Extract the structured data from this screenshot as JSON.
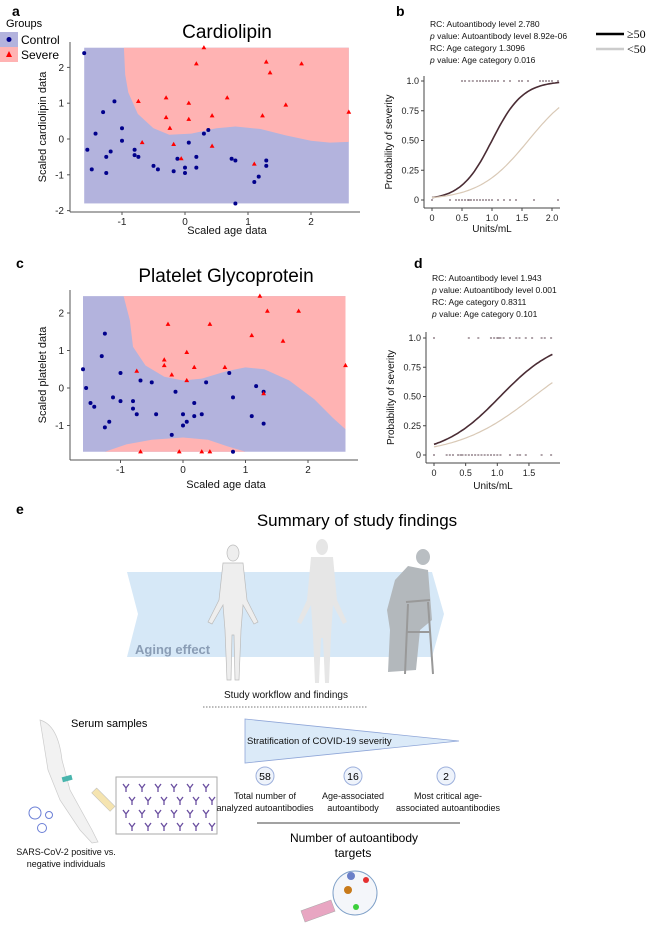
{
  "figure_labels": {
    "a": "a",
    "b": "b",
    "c": "c",
    "d": "d",
    "e": "e"
  },
  "colors": {
    "control": "#00008b",
    "severe": "#ff0000",
    "control_region": "#b3b3dd",
    "severe_region": "#ffb3b3",
    "age_ge50": "#4a2c34",
    "age_lt50": "#d9c9b6"
  },
  "legend_groups": {
    "title": "Groups",
    "control": "Control",
    "severe": "Severe"
  },
  "legend_age": {
    "ge50": "≥50",
    "lt50": "<50"
  },
  "chart_data": [
    {
      "id": "a",
      "type": "scatter",
      "title": "Cardiolipin",
      "xlabel": "Scaled age data",
      "ylabel": "Scaled cardiolipin data",
      "xticks": [
        "-1",
        "0",
        "1",
        "2"
      ],
      "xtick_values": [
        -1,
        0,
        1,
        2
      ],
      "yticks": [
        "-2",
        "-1",
        "0",
        "1",
        "2"
      ],
      "ytick_values": [
        -2,
        -1,
        0,
        1,
        2
      ],
      "region_extent": {
        "x": [
          -1.6,
          2.6
        ],
        "y": [
          -1.8,
          2.55
        ]
      },
      "severe_region_boundary": [
        [
          -0.97,
          2.55
        ],
        [
          -0.95,
          1.8
        ],
        [
          -0.9,
          1.3
        ],
        [
          -0.75,
          0.7
        ],
        [
          -0.5,
          0.3
        ],
        [
          -0.25,
          0.12
        ],
        [
          0.1,
          0.15
        ],
        [
          0.5,
          0.3
        ],
        [
          0.8,
          0.35
        ],
        [
          1.2,
          0.28
        ],
        [
          1.6,
          0.1
        ],
        [
          2.0,
          -0.05
        ],
        [
          2.3,
          -0.1
        ],
        [
          2.6,
          -0.08
        ],
        [
          2.6,
          2.55
        ]
      ],
      "extra_severe_regions": [],
      "series": [
        {
          "name": "Control",
          "points": [
            [
              -1.6,
              2.4
            ],
            [
              -1.55,
              -0.3
            ],
            [
              -1.48,
              -0.85
            ],
            [
              -1.42,
              0.15
            ],
            [
              -1.3,
              0.75
            ],
            [
              -1.25,
              -0.5
            ],
            [
              -1.25,
              -0.95
            ],
            [
              -1.18,
              -0.35
            ],
            [
              -1.12,
              1.05
            ],
            [
              -1.0,
              0.3
            ],
            [
              -1.0,
              -0.05
            ],
            [
              -0.8,
              -0.3
            ],
            [
              -0.8,
              -0.45
            ],
            [
              -0.74,
              -0.5
            ],
            [
              -0.5,
              -0.75
            ],
            [
              -0.43,
              -0.85
            ],
            [
              -0.18,
              -0.9
            ],
            [
              -0.12,
              -0.55
            ],
            [
              0,
              -0.8
            ],
            [
              0,
              -0.95
            ],
            [
              0.06,
              -0.1
            ],
            [
              0.18,
              -0.5
            ],
            [
              0.18,
              -0.8
            ],
            [
              0.3,
              0.15
            ],
            [
              0.37,
              0.25
            ],
            [
              0.74,
              -0.55
            ],
            [
              0.8,
              -0.6
            ],
            [
              0.8,
              -1.8
            ],
            [
              1.1,
              -1.2
            ],
            [
              1.17,
              -1.05
            ],
            [
              1.29,
              -0.6
            ],
            [
              1.29,
              -0.75
            ]
          ]
        },
        {
          "name": "Severe",
          "points": [
            [
              0.3,
              2.55
            ],
            [
              0.18,
              2.1
            ],
            [
              1.29,
              2.15
            ],
            [
              1.35,
              1.85
            ],
            [
              1.85,
              2.1
            ],
            [
              -0.74,
              1.05
            ],
            [
              -0.3,
              1.15
            ],
            [
              0.06,
              1.0
            ],
            [
              0.67,
              1.15
            ],
            [
              -0.3,
              0.6
            ],
            [
              0.06,
              0.55
            ],
            [
              0.43,
              0.65
            ],
            [
              1.23,
              0.65
            ],
            [
              1.6,
              0.95
            ],
            [
              2.6,
              0.75
            ],
            [
              -0.24,
              0.3
            ],
            [
              -0.68,
              -0.1
            ],
            [
              -0.18,
              -0.15
            ],
            [
              0.43,
              -0.2
            ],
            [
              -0.06,
              -0.55
            ],
            [
              1.1,
              -0.7
            ]
          ]
        }
      ]
    },
    {
      "id": "b",
      "type": "line",
      "xlabel": "Units/mL",
      "ylabel": "Probability of severity",
      "xticks": [
        "0",
        "0.5",
        "1.0",
        "1.5",
        "2.0"
      ],
      "xtick_values": [
        0,
        0.5,
        1.0,
        1.5,
        2.0
      ],
      "yticks": [
        "0",
        "0.25",
        "0.50",
        "0.75",
        "1.0"
      ],
      "ytick_values": [
        0,
        0.25,
        0.5,
        0.75,
        1.0
      ],
      "xlim": [
        0,
        2.12
      ],
      "annotations": [
        "RC: Autoantibody level 2.780",
        "value: Autoantibody level 8.92e-06",
        "RC: Age category 1.3096",
        "value: Age category 0.016"
      ],
      "p_prefix": "p",
      "series": [
        {
          "name": "≥50",
          "logistic": {
            "intercept": -3.9,
            "slope": 3.9
          }
        },
        {
          "name": "<50",
          "logistic": {
            "intercept": -3.9,
            "slope": 2.43
          }
        }
      ],
      "rug_severe": [
        0.5,
        0.55,
        0.62,
        0.68,
        0.75,
        0.8,
        0.85,
        0.9,
        0.95,
        1.0,
        1.05,
        1.1,
        1.2,
        1.3,
        1.45,
        1.5,
        1.6,
        1.8,
        1.85,
        1.9,
        1.95,
        2.0,
        2.1
      ],
      "rug_control": [
        0,
        0.3,
        0.4,
        0.45,
        0.5,
        0.55,
        0.6,
        0.62,
        0.65,
        0.7,
        0.75,
        0.8,
        0.85,
        0.9,
        0.95,
        1.0,
        1.1,
        1.2,
        1.3,
        1.4,
        1.7,
        2.1
      ]
    },
    {
      "id": "c",
      "type": "scatter",
      "title": "Platelet Glycoprotein",
      "xlabel": "Scaled age data",
      "ylabel": "Scaled platelet data",
      "xticks": [
        "-1",
        "0",
        "1",
        "2"
      ],
      "xtick_values": [
        -1,
        0,
        1,
        2
      ],
      "yticks": [
        "-1",
        "0",
        "1",
        "2"
      ],
      "ytick_values": [
        -1,
        0,
        1,
        2
      ],
      "region_extent": {
        "x": [
          -1.6,
          2.6
        ],
        "y": [
          -1.7,
          2.45
        ]
      },
      "severe_region_boundary": [
        [
          -0.95,
          2.45
        ],
        [
          -0.85,
          1.8
        ],
        [
          -0.8,
          1.1
        ],
        [
          -0.6,
          0.6
        ],
        [
          -0.3,
          0.3
        ],
        [
          0,
          0.2
        ],
        [
          0.3,
          0.25
        ],
        [
          0.7,
          0.45
        ],
        [
          1.0,
          0.55
        ],
        [
          1.3,
          0.5
        ],
        [
          1.7,
          0.2
        ],
        [
          2.1,
          -0.3
        ],
        [
          2.4,
          -0.8
        ],
        [
          2.6,
          -1.1
        ],
        [
          2.6,
          2.45
        ]
      ],
      "extra_severe_regions": [
        [
          [
            -1.25,
            -1.7
          ],
          [
            -0.9,
            -1.5
          ],
          [
            -0.5,
            -1.38
          ],
          [
            0,
            -1.32
          ],
          [
            0.4,
            -1.38
          ],
          [
            0.7,
            -1.55
          ],
          [
            1.0,
            -1.7
          ]
        ]
      ],
      "series": [
        {
          "name": "Control",
          "points": [
            [
              -1.6,
              0.5
            ],
            [
              -1.55,
              0
            ],
            [
              -1.48,
              -0.4
            ],
            [
              -1.42,
              -0.5
            ],
            [
              -1.3,
              0.85
            ],
            [
              -1.25,
              1.45
            ],
            [
              -1.25,
              -1.05
            ],
            [
              -1.18,
              -0.9
            ],
            [
              -1.12,
              -0.25
            ],
            [
              -1.0,
              0.4
            ],
            [
              -1.0,
              -0.35
            ],
            [
              -0.8,
              -0.35
            ],
            [
              -0.8,
              -0.55
            ],
            [
              -0.74,
              -0.7
            ],
            [
              -0.68,
              0.2
            ],
            [
              -0.5,
              0.15
            ],
            [
              -0.43,
              -0.7
            ],
            [
              -0.18,
              -1.25
            ],
            [
              -0.12,
              -0.1
            ],
            [
              0,
              -0.7
            ],
            [
              0,
              -1.0
            ],
            [
              0.06,
              -0.9
            ],
            [
              0.18,
              -0.4
            ],
            [
              0.18,
              -0.75
            ],
            [
              0.3,
              -0.7
            ],
            [
              0.37,
              0.15
            ],
            [
              0.74,
              0.4
            ],
            [
              0.8,
              -0.25
            ],
            [
              0.8,
              -1.7
            ],
            [
              1.1,
              -0.75
            ],
            [
              1.17,
              0.05
            ],
            [
              1.29,
              -0.1
            ],
            [
              1.29,
              -0.95
            ]
          ]
        },
        {
          "name": "Severe",
          "points": [
            [
              1.23,
              2.45
            ],
            [
              1.35,
              2.05
            ],
            [
              1.85,
              2.05
            ],
            [
              -0.24,
              1.7
            ],
            [
              0.43,
              1.7
            ],
            [
              1.1,
              1.4
            ],
            [
              1.6,
              1.25
            ],
            [
              0.06,
              0.95
            ],
            [
              -0.3,
              0.75
            ],
            [
              -0.3,
              0.6
            ],
            [
              0.18,
              0.55
            ],
            [
              0.67,
              0.55
            ],
            [
              2.6,
              0.6
            ],
            [
              -0.74,
              0.45
            ],
            [
              -0.18,
              0.35
            ],
            [
              0.06,
              0.2
            ],
            [
              1.29,
              -0.15
            ],
            [
              -0.68,
              -1.7
            ],
            [
              -0.06,
              -1.7
            ],
            [
              0.3,
              -1.7
            ],
            [
              0.43,
              -1.7
            ]
          ]
        }
      ]
    },
    {
      "id": "d",
      "type": "line",
      "xlabel": "Units/mL",
      "ylabel": "Probability of severity",
      "xticks": [
        "0",
        "0.5",
        "1.0",
        "1.5"
      ],
      "xtick_values": [
        0,
        0.5,
        1.0,
        1.5
      ],
      "yticks": [
        "0",
        "0.25",
        "0.50",
        "0.75",
        "1.0"
      ],
      "ytick_values": [
        0,
        0.25,
        0.5,
        0.75,
        1.0
      ],
      "xlim": [
        0,
        1.87
      ],
      "annotations": [
        "RC: Autoantibody level 1.943",
        "value:  Autoantibody level 0.001",
        "RC: Age category 0.8311",
        "value: Age category 0.101"
      ],
      "p_prefix": "p",
      "series": [
        {
          "name": "≥50",
          "logistic": {
            "intercept": -2.3,
            "slope": 2.2
          }
        },
        {
          "name": "<50",
          "logistic": {
            "intercept": -2.6,
            "slope": 1.65
          }
        }
      ],
      "rug_severe": [
        0,
        0.55,
        0.7,
        0.9,
        0.95,
        1.0,
        1.02,
        1.05,
        1.1,
        1.2,
        1.3,
        1.35,
        1.45,
        1.55,
        1.7,
        1.75,
        1.85
      ],
      "rug_control": [
        0,
        0.2,
        0.25,
        0.3,
        0.38,
        0.42,
        0.45,
        0.5,
        0.55,
        0.6,
        0.65,
        0.7,
        0.75,
        0.8,
        0.85,
        0.9,
        0.95,
        1.0,
        1.05,
        1.2,
        1.32,
        1.36,
        1.45,
        1.7,
        1.85
      ]
    }
  ],
  "summary": {
    "title": "Summary of study findings",
    "aging_effect": "Aging effect",
    "workflow": "Study workflow and findings",
    "serum": "Serum samples",
    "sars_line1": "SARS-CoV-2 positive vs.",
    "sars_line2": "negative individuals",
    "stratification": "Stratification of COVID-19 severity",
    "counts": [
      {
        "value": "58",
        "line1": "Total number of",
        "line2": "analyzed autoantibodies"
      },
      {
        "value": "16",
        "line1": "Age-associated",
        "line2": "autoantibody"
      },
      {
        "value": "2",
        "line1": "Most critical age-",
        "line2": "associated autoantibodies"
      }
    ],
    "targets_line1": "Number of autoantibody",
    "targets_line2": "targets"
  }
}
